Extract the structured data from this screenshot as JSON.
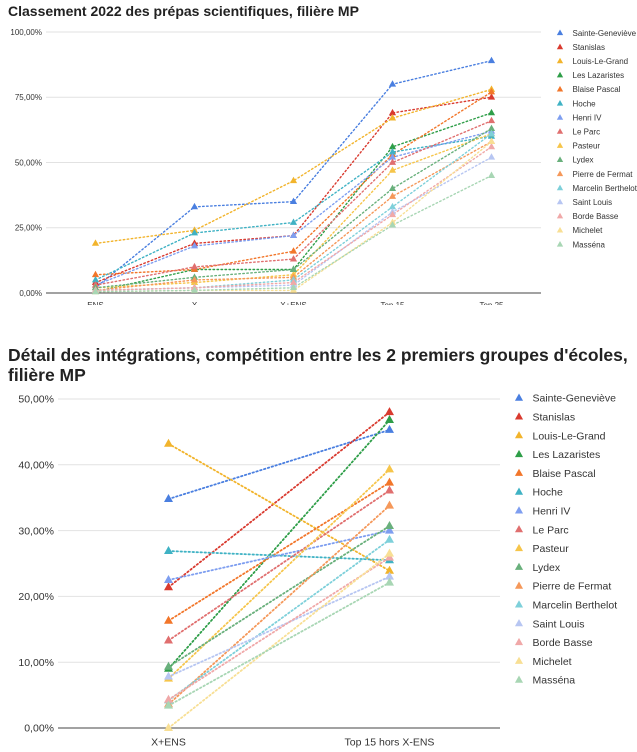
{
  "chart_data": [
    {
      "type": "line",
      "title": "Classement 2022 des prépas scientifiques, filière MP",
      "categories": [
        "ENS",
        "X",
        "X+ENS",
        "Top 15",
        "Top 25"
      ],
      "y_ticks": [
        "0,00%",
        "25,00%",
        "50,00%",
        "75,00%",
        "100,00%"
      ],
      "ylim": [
        0,
        100
      ],
      "legend_position": "right",
      "line_style": "dotted",
      "marker": "triangle",
      "grid": true,
      "series": [
        {
          "name": "Sainte-Geneviève",
          "color": "#4a7fe0",
          "values": [
            2,
            33,
            35,
            80,
            89
          ]
        },
        {
          "name": "Stanislas",
          "color": "#d93a2f",
          "values": [
            4,
            19,
            22,
            69,
            75
          ]
        },
        {
          "name": "Louis-Le-Grand",
          "color": "#f2b42c",
          "values": [
            19,
            24,
            43,
            67,
            78
          ]
        },
        {
          "name": "Les Lazaristes",
          "color": "#2e9e48",
          "values": [
            0.5,
            9,
            9,
            56,
            69
          ]
        },
        {
          "name": "Blaise Pascal",
          "color": "#f2762a",
          "values": [
            7,
            9,
            16,
            53,
            77
          ]
        },
        {
          "name": "Hoche",
          "color": "#3fb2c4",
          "values": [
            5,
            23,
            27,
            54,
            60
          ]
        },
        {
          "name": "Henri IV",
          "color": "#7e9ef0",
          "values": [
            3,
            18,
            22,
            52,
            62
          ]
        },
        {
          "name": "Le Parc",
          "color": "#e06f6f",
          "values": [
            3,
            10,
            13,
            50,
            66
          ]
        },
        {
          "name": "Pasteur",
          "color": "#f6c54a",
          "values": [
            2,
            4,
            7,
            47,
            61
          ]
        },
        {
          "name": "Lydex",
          "color": "#69b07c",
          "values": [
            2,
            6,
            9,
            40,
            63
          ]
        },
        {
          "name": "Pierre de Fermat",
          "color": "#f5985a",
          "values": [
            1,
            5,
            6,
            37,
            58
          ]
        },
        {
          "name": "Marcelin Berthelot",
          "color": "#7ed0da",
          "values": [
            1,
            2,
            5,
            33,
            61
          ]
        },
        {
          "name": "Saint Louis",
          "color": "#b7c6f2",
          "values": [
            1,
            2,
            3,
            31,
            52
          ]
        },
        {
          "name": "Borde Basse",
          "color": "#f0a8a8",
          "values": [
            1,
            2,
            4,
            30,
            56
          ]
        },
        {
          "name": "Michelet",
          "color": "#f8df94",
          "values": [
            0.5,
            1,
            1,
            27,
            58
          ]
        },
        {
          "name": "Masséna",
          "color": "#a8d6b4",
          "values": [
            0.5,
            1,
            2,
            26,
            45
          ]
        }
      ]
    },
    {
      "type": "line",
      "title": "Détail des intégrations, compétition entre les 2 premiers groupes d'écoles, filière MP",
      "categories": [
        "X+ENS",
        "Top 15 hors X-ENS"
      ],
      "y_ticks": [
        "0,00%",
        "10,00%",
        "20,00%",
        "30,00%",
        "40,00%",
        "50,00%"
      ],
      "ylim": [
        0,
        50
      ],
      "legend_position": "right",
      "line_style": "dotted",
      "marker": "triangle",
      "grid": true,
      "series": [
        {
          "name": "Sainte-Geneviève",
          "color": "#4a7fe0",
          "values": [
            34.8,
            45.3
          ]
        },
        {
          "name": "Stanislas",
          "color": "#d93a2f",
          "values": [
            21.4,
            48.0
          ]
        },
        {
          "name": "Louis-Le-Grand",
          "color": "#f2b42c",
          "values": [
            43.2,
            23.9
          ]
        },
        {
          "name": "Les Lazaristes",
          "color": "#2e9e48",
          "values": [
            9.0,
            46.8
          ]
        },
        {
          "name": "Blaise Pascal",
          "color": "#f2762a",
          "values": [
            16.3,
            37.3
          ]
        },
        {
          "name": "Hoche",
          "color": "#3fb2c4",
          "values": [
            26.9,
            25.5
          ]
        },
        {
          "name": "Henri IV",
          "color": "#7e9ef0",
          "values": [
            22.5,
            30.0
          ]
        },
        {
          "name": "Le Parc",
          "color": "#e06f6f",
          "values": [
            13.3,
            36.1
          ]
        },
        {
          "name": "Pasteur",
          "color": "#f6c54a",
          "values": [
            7.5,
            39.3
          ]
        },
        {
          "name": "Lydex",
          "color": "#69b07c",
          "values": [
            9.3,
            30.7
          ]
        },
        {
          "name": "Pierre de Fermat",
          "color": "#f5985a",
          "values": [
            3.6,
            33.8
          ]
        },
        {
          "name": "Marcelin Berthelot",
          "color": "#7ed0da",
          "values": [
            4.2,
            28.6
          ]
        },
        {
          "name": "Saint Louis",
          "color": "#b7c6f2",
          "values": [
            7.8,
            23.0
          ]
        },
        {
          "name": "Borde Basse",
          "color": "#f0a8a8",
          "values": [
            4.3,
            25.9
          ]
        },
        {
          "name": "Michelet",
          "color": "#f8df94",
          "values": [
            0.0,
            26.5
          ]
        },
        {
          "name": "Masséna",
          "color": "#a8d6b4",
          "values": [
            3.4,
            22.1
          ]
        }
      ]
    }
  ]
}
